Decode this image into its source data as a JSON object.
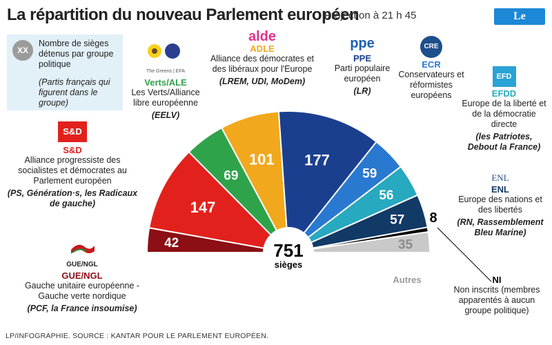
{
  "header": {
    "title": "La répartition du nouveau Parlement européen",
    "subtitle": "Projection à 21 h 45",
    "logo": "Le Parisien"
  },
  "legend": {
    "placeholder": "XX",
    "text": "Nombre de sièges détenus par groupe politique",
    "parties_text": "(Partis français qui figurent dans le groupe)"
  },
  "groups": {
    "gue": {
      "logo": "GUE/NGL",
      "abbr": "GUE/NGL",
      "name": "Gauche unitaire européenne - Gauche verte nordique",
      "parties": "(PCF, la France insoumise)"
    },
    "sd": {
      "logo": "S&D",
      "abbr": "S&D",
      "name": "Alliance progressiste des socialistes et démocrates au Parlement européen",
      "parties": "(PS, Génération·s, les Radicaux de gauche)"
    },
    "verts": {
      "logo": "The Greens | EFA",
      "abbr": "Verts/ALE",
      "name": "Les Verts/Alliance libre européenne",
      "parties": "(EELV)"
    },
    "adle": {
      "logo": "alde",
      "abbr": "ADLE",
      "name": "Alliance des démocrates et des libéraux pour l'Europe",
      "parties": "(LREM, UDI, MoDem)"
    },
    "ppe": {
      "logo": "ppe",
      "abbr": "PPE",
      "name": "Parti populaire européen",
      "parties": "(LR)"
    },
    "ecr": {
      "logo": "CRE",
      "abbr": "ECR",
      "name": "Conservateurs et réformistes européens",
      "parties": ""
    },
    "efdd": {
      "logo": "EFD",
      "abbr": "EFDD",
      "name": "Europe de la liberté et de la démocratie directe",
      "parties": "(les Patriotes, Debout la France)"
    },
    "enl": {
      "logo": "ENL",
      "abbr": "ENL",
      "name": "Europe des nations et des libertés",
      "parties": "(RN, Rassemblement Bleu Marine)"
    },
    "ni": {
      "abbr": "NI",
      "name": "Non inscrits (membres apparentés à aucun groupe politique)"
    },
    "autres": {
      "label": "Autres"
    }
  },
  "chart_data": {
    "type": "pie",
    "title": "La répartition du nouveau Parlement européen",
    "total": 751,
    "total_label": "sièges",
    "series": [
      {
        "name": "GUE/NGL",
        "value": 42,
        "color": "#8b0f14"
      },
      {
        "name": "S&D",
        "value": 147,
        "color": "#e2211c"
      },
      {
        "name": "Verts/ALE",
        "value": 69,
        "color": "#2fa34a"
      },
      {
        "name": "ADLE",
        "value": 101,
        "color": "#f2a81d"
      },
      {
        "name": "PPE",
        "value": 177,
        "color": "#1b3f8f"
      },
      {
        "name": "ECR",
        "value": 59,
        "color": "#2a79d0"
      },
      {
        "name": "EFDD",
        "value": 56,
        "color": "#27a9bf"
      },
      {
        "name": "ENL",
        "value": 57,
        "color": "#123a66"
      },
      {
        "name": "NI",
        "value": 8,
        "color": "#000000"
      },
      {
        "name": "Autres",
        "value": 35,
        "color": "#c9c9c9"
      }
    ]
  },
  "footer": "LP/INFOGRAPHIE. SOURCE : KANTAR POUR LE PARLEMENT EUROPÉEN."
}
